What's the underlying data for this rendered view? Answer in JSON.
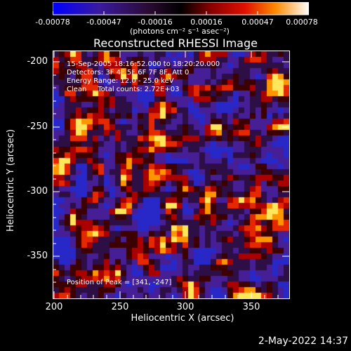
{
  "colorbar": {
    "ticks": [
      "-0.00078",
      "-0.00047",
      "-0.00016",
      "0.00016",
      "0.00047",
      "0.00078"
    ],
    "units_label": "(photons cm⁻² s⁻¹ asec⁻²)"
  },
  "title": "Reconstructed RHESSI Image",
  "annotations": {
    "time_range": "15-Sep-2005 18:16:52.000 to 18:20:20.000",
    "detectors": "Detectors: 3F 4F 5F 6F 7F 8F, Att 0",
    "energy": "Energy Range: 12.0 - 25.0 keV",
    "clean": "Clean     Total counts: 2.72E+03",
    "peak": "Position of Peak = [341, -247]"
  },
  "axes": {
    "xlabel": "Heliocentric X (arcsec)",
    "ylabel": "Heliocentric Y (arcsec)",
    "xticks": [
      "200",
      "250",
      "300",
      "350"
    ],
    "yticks": [
      "-200",
      "-250",
      "-300",
      "-350"
    ],
    "xlim": [
      200,
      388
    ],
    "ylim": [
      -188,
      -386
    ]
  },
  "datestamp": "2-May-2022 14:37"
}
